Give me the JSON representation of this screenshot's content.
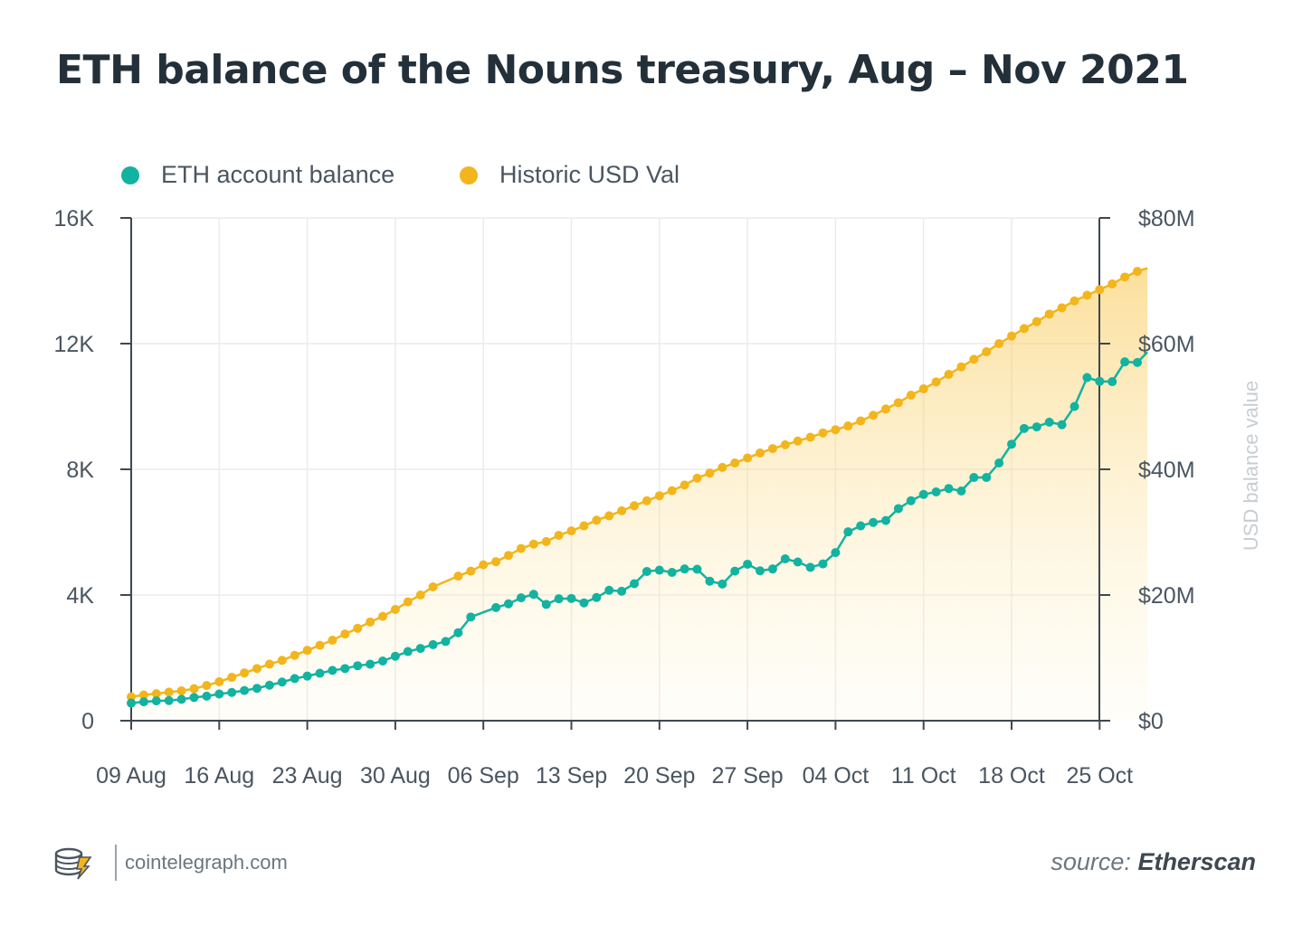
{
  "title": "ETH balance of the Nouns treasury, Aug – Nov 2021",
  "legend": {
    "eth": {
      "label": "ETH account balance",
      "color": "#12b3a0"
    },
    "usd": {
      "label": "Historic USD Val",
      "color": "#f2b51c"
    }
  },
  "footer": {
    "brand_icon": "cointelegraph-logo-icon",
    "site": "cointelegraph.com",
    "source_prefix": "source:",
    "source_name": "Etherscan"
  },
  "chart_data": {
    "type": "line",
    "x_ticks": [
      "09 Aug",
      "16 Aug",
      "23 Aug",
      "30 Aug",
      "06 Sep",
      "13 Sep",
      "20 Sep",
      "27 Sep",
      "04 Oct",
      "11 Oct",
      "18 Oct",
      "25 Oct"
    ],
    "x_range_days": [
      0,
      77
    ],
    "y_left": {
      "ticks": [
        "0",
        "4K",
        "8K",
        "12K",
        "16K"
      ],
      "range": [
        0,
        16000
      ]
    },
    "y_right": {
      "label": "USD balance value",
      "ticks": [
        "$0",
        "$20M",
        "$40M",
        "$60M",
        "$80M"
      ],
      "range": [
        0,
        80000000
      ]
    },
    "grid": true,
    "legend_position": "top-left",
    "series": [
      {
        "name": "ETH account balance",
        "axis": "left",
        "color": "#12b3a0",
        "points": [
          [
            0,
            560
          ],
          [
            1,
            600
          ],
          [
            2,
            630
          ],
          [
            3,
            640
          ],
          [
            4,
            680
          ],
          [
            5,
            740
          ],
          [
            6,
            780
          ],
          [
            7,
            850
          ],
          [
            8,
            900
          ],
          [
            9,
            960
          ],
          [
            10,
            1030
          ],
          [
            11,
            1130
          ],
          [
            12,
            1230
          ],
          [
            13,
            1340
          ],
          [
            14,
            1420
          ],
          [
            15,
            1510
          ],
          [
            16,
            1600
          ],
          [
            17,
            1660
          ],
          [
            18,
            1750
          ],
          [
            19,
            1800
          ],
          [
            20,
            1900
          ],
          [
            21,
            2050
          ],
          [
            22,
            2200
          ],
          [
            23,
            2300
          ],
          [
            24,
            2420
          ],
          [
            25,
            2520
          ],
          [
            26,
            2800
          ],
          [
            27,
            3300
          ],
          [
            29,
            3600
          ],
          [
            30,
            3720
          ],
          [
            31,
            3910
          ],
          [
            32,
            4020
          ],
          [
            33,
            3700
          ],
          [
            34,
            3880
          ],
          [
            35,
            3890
          ],
          [
            36,
            3750
          ],
          [
            37,
            3920
          ],
          [
            38,
            4150
          ],
          [
            39,
            4120
          ],
          [
            40,
            4360
          ],
          [
            41,
            4750
          ],
          [
            42,
            4790
          ],
          [
            43,
            4720
          ],
          [
            44,
            4830
          ],
          [
            45,
            4820
          ],
          [
            46,
            4440
          ],
          [
            47,
            4350
          ],
          [
            48,
            4760
          ],
          [
            49,
            4980
          ],
          [
            50,
            4770
          ],
          [
            51,
            4830
          ],
          [
            52,
            5150
          ],
          [
            53,
            5050
          ],
          [
            54,
            4880
          ],
          [
            55,
            4990
          ],
          [
            56,
            5350
          ],
          [
            57,
            6010
          ],
          [
            58,
            6200
          ],
          [
            59,
            6310
          ],
          [
            60,
            6370
          ],
          [
            61,
            6750
          ],
          [
            62,
            7000
          ],
          [
            63,
            7200
          ],
          [
            64,
            7280
          ],
          [
            65,
            7390
          ],
          [
            66,
            7310
          ],
          [
            67,
            7740
          ],
          [
            68,
            7740
          ],
          [
            69,
            8200
          ],
          [
            70,
            8800
          ],
          [
            71,
            9300
          ],
          [
            72,
            9350
          ],
          [
            73,
            9500
          ],
          [
            74,
            9420
          ],
          [
            75,
            10000
          ],
          [
            76,
            10920
          ],
          [
            77,
            10800
          ],
          [
            78,
            10790
          ],
          [
            79,
            11420
          ],
          [
            80,
            11400
          ],
          [
            80.8,
            11730
          ]
        ]
      },
      {
        "name": "Historic USD Val",
        "axis": "right",
        "color": "#f2b51c",
        "points": [
          [
            0,
            3800000
          ],
          [
            1,
            4100000
          ],
          [
            2,
            4300000
          ],
          [
            3,
            4550000
          ],
          [
            4,
            4750000
          ],
          [
            5,
            5100000
          ],
          [
            6,
            5600000
          ],
          [
            7,
            6200000
          ],
          [
            8,
            6900000
          ],
          [
            9,
            7600000
          ],
          [
            10,
            8300000
          ],
          [
            11,
            9000000
          ],
          [
            12,
            9600000
          ],
          [
            13,
            10400000
          ],
          [
            14,
            11200000
          ],
          [
            15,
            12000000
          ],
          [
            16,
            12800000
          ],
          [
            17,
            13800000
          ],
          [
            18,
            14700000
          ],
          [
            19,
            15700000
          ],
          [
            20,
            16600000
          ],
          [
            21,
            17700000
          ],
          [
            22,
            18900000
          ],
          [
            23,
            20000000
          ],
          [
            24,
            21300000
          ],
          [
            26,
            23000000
          ],
          [
            27,
            23800000
          ],
          [
            28,
            24800000
          ],
          [
            29,
            25300000
          ],
          [
            30,
            26300000
          ],
          [
            31,
            27400000
          ],
          [
            32,
            28100000
          ],
          [
            33,
            28500000
          ],
          [
            34,
            29500000
          ],
          [
            35,
            30200000
          ],
          [
            36,
            31000000
          ],
          [
            37,
            31900000
          ],
          [
            38,
            32600000
          ],
          [
            39,
            33400000
          ],
          [
            40,
            34200000
          ],
          [
            41,
            35000000
          ],
          [
            42,
            35800000
          ],
          [
            43,
            36600000
          ],
          [
            44,
            37500000
          ],
          [
            45,
            38600000
          ],
          [
            46,
            39400000
          ],
          [
            47,
            40300000
          ],
          [
            48,
            41000000
          ],
          [
            49,
            41800000
          ],
          [
            50,
            42600000
          ],
          [
            51,
            43300000
          ],
          [
            52,
            43900000
          ],
          [
            53,
            44500000
          ],
          [
            54,
            45100000
          ],
          [
            55,
            45800000
          ],
          [
            56,
            46300000
          ],
          [
            57,
            46900000
          ],
          [
            58,
            47700000
          ],
          [
            59,
            48600000
          ],
          [
            60,
            49600000
          ],
          [
            61,
            50600000
          ],
          [
            62,
            51800000
          ],
          [
            63,
            52800000
          ],
          [
            64,
            53900000
          ],
          [
            65,
            55100000
          ],
          [
            66,
            56300000
          ],
          [
            67,
            57500000
          ],
          [
            68,
            58700000
          ],
          [
            69,
            60000000
          ],
          [
            70,
            61200000
          ],
          [
            71,
            62400000
          ],
          [
            72,
            63500000
          ],
          [
            73,
            64700000
          ],
          [
            74,
            65700000
          ],
          [
            75,
            66800000
          ],
          [
            76,
            67700000
          ],
          [
            77,
            68600000
          ],
          [
            78,
            69500000
          ],
          [
            79,
            70600000
          ],
          [
            80,
            71500000
          ],
          [
            80.8,
            72000000
          ]
        ]
      }
    ]
  }
}
